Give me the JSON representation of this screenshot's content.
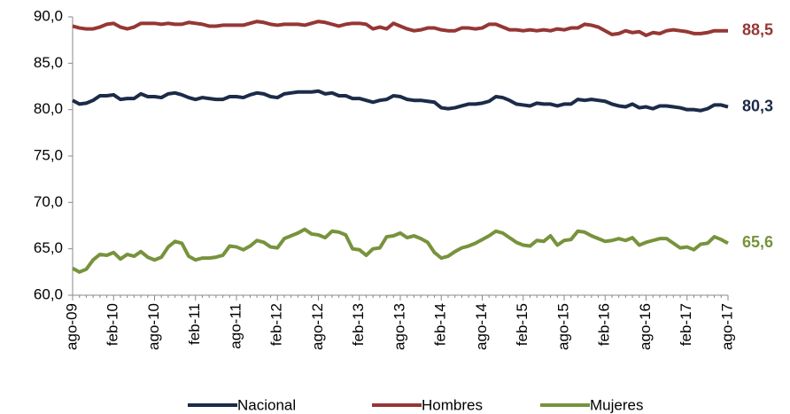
{
  "chart_data": {
    "type": "line",
    "categories": [
      "ago-09",
      null,
      null,
      null,
      null,
      null,
      "feb-10",
      null,
      null,
      null,
      null,
      null,
      "ago-10",
      null,
      null,
      null,
      null,
      null,
      "feb-11",
      null,
      null,
      null,
      null,
      null,
      "ago-11",
      null,
      null,
      null,
      null,
      null,
      "feb-12",
      null,
      null,
      null,
      null,
      null,
      "ago-12",
      null,
      null,
      null,
      null,
      null,
      "feb-13",
      null,
      null,
      null,
      null,
      null,
      "ago-13",
      null,
      null,
      null,
      null,
      null,
      "feb-14",
      null,
      null,
      null,
      null,
      null,
      "ago-14",
      null,
      null,
      null,
      null,
      null,
      "feb-15",
      null,
      null,
      null,
      null,
      null,
      "ago-15",
      null,
      null,
      null,
      null,
      null,
      "feb-16",
      null,
      null,
      null,
      null,
      null,
      "ago-16",
      null,
      null,
      null,
      null,
      null,
      "feb-17",
      null,
      null,
      null,
      null,
      null,
      "ago-17"
    ],
    "series": [
      {
        "name": "Nacional",
        "color": "#1c2b48",
        "last_label": "80,3",
        "values": [
          81.0,
          80.6,
          80.7,
          81.0,
          81.5,
          81.5,
          81.6,
          81.1,
          81.2,
          81.2,
          81.7,
          81.4,
          81.4,
          81.3,
          81.7,
          81.8,
          81.6,
          81.3,
          81.1,
          81.3,
          81.2,
          81.1,
          81.1,
          81.4,
          81.4,
          81.3,
          81.6,
          81.8,
          81.7,
          81.4,
          81.3,
          81.7,
          81.8,
          81.9,
          81.9,
          81.9,
          82.0,
          81.7,
          81.8,
          81.5,
          81.5,
          81.2,
          81.2,
          81.0,
          80.8,
          81.0,
          81.1,
          81.5,
          81.4,
          81.1,
          81.0,
          81.0,
          80.9,
          80.8,
          80.2,
          80.1,
          80.2,
          80.4,
          80.6,
          80.6,
          80.7,
          80.9,
          81.4,
          81.3,
          81.0,
          80.6,
          80.5,
          80.4,
          80.7,
          80.6,
          80.6,
          80.4,
          80.6,
          80.6,
          81.1,
          81.0,
          81.1,
          81.0,
          80.9,
          80.6,
          80.4,
          80.3,
          80.6,
          80.2,
          80.3,
          80.1,
          80.4,
          80.4,
          80.3,
          80.2,
          80.0,
          80.0,
          79.9,
          80.1,
          80.5,
          80.5,
          80.3
        ]
      },
      {
        "name": "Hombres",
        "color": "#953735",
        "last_label": "88,5",
        "values": [
          89.0,
          88.8,
          88.7,
          88.7,
          88.9,
          89.2,
          89.3,
          88.9,
          88.7,
          88.9,
          89.3,
          89.3,
          89.3,
          89.2,
          89.3,
          89.2,
          89.2,
          89.4,
          89.3,
          89.2,
          89.0,
          89.0,
          89.1,
          89.1,
          89.1,
          89.1,
          89.3,
          89.5,
          89.4,
          89.2,
          89.1,
          89.2,
          89.2,
          89.2,
          89.1,
          89.3,
          89.5,
          89.4,
          89.2,
          89.0,
          89.2,
          89.3,
          89.3,
          89.2,
          88.7,
          88.9,
          88.7,
          89.3,
          89.0,
          88.7,
          88.5,
          88.6,
          88.8,
          88.8,
          88.6,
          88.5,
          88.5,
          88.8,
          88.8,
          88.7,
          88.8,
          89.2,
          89.2,
          88.9,
          88.6,
          88.6,
          88.5,
          88.6,
          88.5,
          88.6,
          88.5,
          88.7,
          88.6,
          88.8,
          88.8,
          89.2,
          89.1,
          88.9,
          88.5,
          88.1,
          88.2,
          88.5,
          88.3,
          88.4,
          88.0,
          88.3,
          88.2,
          88.5,
          88.6,
          88.5,
          88.4,
          88.2,
          88.2,
          88.3,
          88.5,
          88.5,
          88.5
        ]
      },
      {
        "name": "Mujeres",
        "color": "#77933c",
        "last_label": "65,6",
        "values": [
          62.9,
          62.5,
          62.8,
          63.8,
          64.4,
          64.3,
          64.6,
          63.9,
          64.4,
          64.2,
          64.7,
          64.1,
          63.8,
          64.1,
          65.2,
          65.8,
          65.6,
          64.2,
          63.8,
          64.0,
          64.0,
          64.1,
          64.3,
          65.3,
          65.2,
          64.9,
          65.3,
          65.9,
          65.7,
          65.2,
          65.1,
          66.1,
          66.4,
          66.7,
          67.1,
          66.6,
          66.5,
          66.2,
          66.9,
          66.8,
          66.5,
          65.0,
          64.9,
          64.3,
          65.0,
          65.1,
          66.3,
          66.4,
          66.7,
          66.2,
          66.4,
          66.1,
          65.7,
          64.6,
          64.0,
          64.2,
          64.7,
          65.1,
          65.3,
          65.6,
          66.0,
          66.4,
          66.9,
          66.7,
          66.2,
          65.7,
          65.4,
          65.3,
          65.9,
          65.8,
          66.4,
          65.4,
          65.9,
          66.0,
          66.9,
          66.8,
          66.4,
          66.1,
          65.8,
          65.9,
          66.1,
          65.9,
          66.2,
          65.4,
          65.7,
          65.9,
          66.1,
          66.1,
          65.6,
          65.1,
          65.2,
          64.9,
          65.5,
          65.6,
          66.3,
          66.0,
          65.6
        ]
      }
    ],
    "ylim": [
      60,
      90
    ],
    "yticks": [
      {
        "value": 60,
        "label": "60,0"
      },
      {
        "value": 65,
        "label": "65,0"
      },
      {
        "value": 70,
        "label": "70,0"
      },
      {
        "value": 75,
        "label": "75,0"
      },
      {
        "value": 80,
        "label": "80,0"
      },
      {
        "value": 85,
        "label": "85,0"
      },
      {
        "value": 90,
        "label": "90,0"
      }
    ],
    "grid": false,
    "legend": "bottom"
  }
}
